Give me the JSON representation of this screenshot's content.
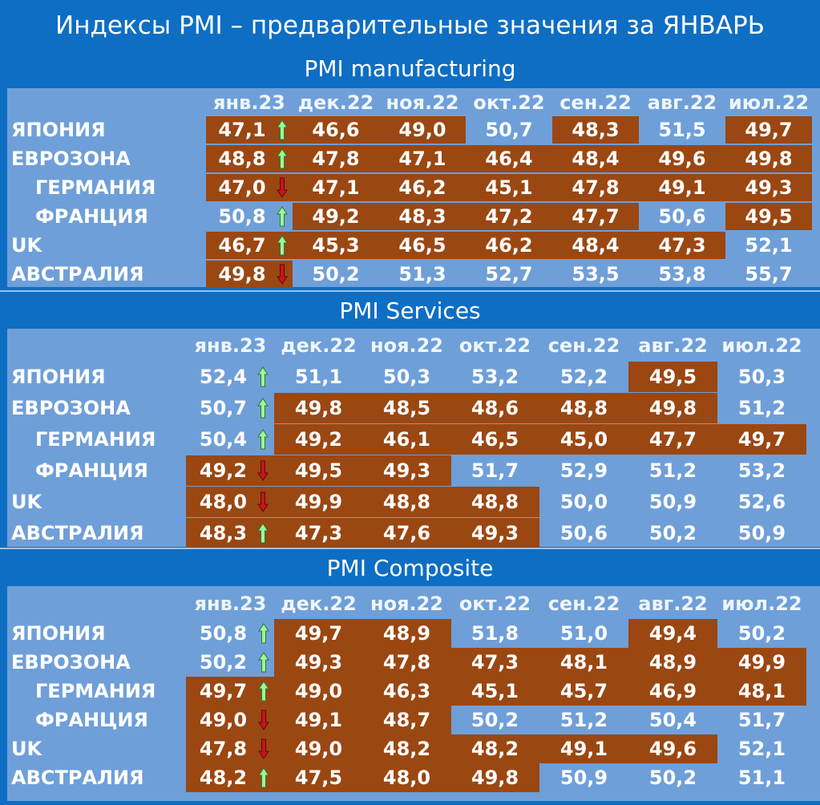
{
  "title": "Индексы PMI – предварительные значения за ЯНВАРЬ",
  "chart_data": {
    "type": "table",
    "columns": [
      "янв.23",
      "дек.22",
      "ноя.22",
      "окт.22",
      "сен.22",
      "авг.22",
      "июл.22"
    ],
    "countries": [
      "ЯПОНИЯ",
      "ЕВРОЗОНА",
      "ГЕРМАНИЯ",
      "ФРАНЦИЯ",
      "UK",
      "АВСТРАЛИЯ"
    ],
    "colors": {
      "brown": "#9b4712",
      "blue": "#6f9fd8",
      "up_arrow": "#9ef59a",
      "down_arrow": "#c8141c"
    },
    "sections": [
      {
        "title": "PMI manufacturing",
        "values": [
          [
            "47,1",
            "46,6",
            "49,0",
            "50,7",
            "48,3",
            "51,5",
            "49,7"
          ],
          [
            "48,8",
            "47,8",
            "47,1",
            "46,4",
            "48,4",
            "49,6",
            "49,8"
          ],
          [
            "47,0",
            "47,1",
            "46,2",
            "45,1",
            "47,8",
            "49,1",
            "49,3"
          ],
          [
            "50,8",
            "49,2",
            "48,3",
            "47,2",
            "47,7",
            "50,6",
            "49,5"
          ],
          [
            "46,7",
            "45,3",
            "46,5",
            "46,2",
            "48,4",
            "47,3",
            "52,1"
          ],
          [
            "49,8",
            "50,2",
            "51,3",
            "52,7",
            "53,5",
            "53,8",
            "55,7"
          ]
        ],
        "below50": [
          [
            1,
            1,
            1,
            0,
            1,
            0,
            1
          ],
          [
            1,
            1,
            1,
            1,
            1,
            1,
            1
          ],
          [
            1,
            1,
            1,
            1,
            1,
            1,
            1
          ],
          [
            0,
            1,
            1,
            1,
            1,
            0,
            1
          ],
          [
            1,
            1,
            1,
            1,
            1,
            1,
            0
          ],
          [
            1,
            0,
            0,
            0,
            0,
            0,
            0
          ]
        ],
        "trend": [
          "up",
          "up",
          "down",
          "up",
          "up",
          "down"
        ]
      },
      {
        "title": "PMI Services",
        "values": [
          [
            "52,4",
            "51,1",
            "50,3",
            "53,2",
            "52,2",
            "49,5",
            "50,3"
          ],
          [
            "50,7",
            "49,8",
            "48,5",
            "48,6",
            "48,8",
            "49,8",
            "51,2"
          ],
          [
            "50,4",
            "49,2",
            "46,1",
            "46,5",
            "45,0",
            "47,7",
            "49,7"
          ],
          [
            "49,2",
            "49,5",
            "49,3",
            "51,7",
            "52,9",
            "51,2",
            "53,2"
          ],
          [
            "48,0",
            "49,9",
            "48,8",
            "48,8",
            "50,0",
            "50,9",
            "52,6"
          ],
          [
            "48,3",
            "47,3",
            "47,6",
            "49,3",
            "50,6",
            "50,2",
            "50,9"
          ]
        ],
        "below50": [
          [
            0,
            0,
            0,
            0,
            0,
            1,
            0
          ],
          [
            0,
            1,
            1,
            1,
            1,
            1,
            0
          ],
          [
            0,
            1,
            1,
            1,
            1,
            1,
            1
          ],
          [
            1,
            1,
            1,
            0,
            0,
            0,
            0
          ],
          [
            1,
            1,
            1,
            1,
            0,
            0,
            0
          ],
          [
            1,
            1,
            1,
            1,
            0,
            0,
            0
          ]
        ],
        "trend": [
          "up",
          "up",
          "up",
          "down",
          "down",
          "up"
        ]
      },
      {
        "title": "PMI Composite",
        "values": [
          [
            "50,8",
            "49,7",
            "48,9",
            "51,8",
            "51,0",
            "49,4",
            "50,2"
          ],
          [
            "50,2",
            "49,3",
            "47,8",
            "47,3",
            "48,1",
            "48,9",
            "49,9"
          ],
          [
            "49,7",
            "49,0",
            "46,3",
            "45,1",
            "45,7",
            "46,9",
            "48,1"
          ],
          [
            "49,0",
            "49,1",
            "48,7",
            "50,2",
            "51,2",
            "50,4",
            "51,7"
          ],
          [
            "47,8",
            "49,0",
            "48,2",
            "48,2",
            "49,1",
            "49,6",
            "52,1"
          ],
          [
            "48,2",
            "47,5",
            "48,0",
            "49,8",
            "50,9",
            "50,2",
            "51,1"
          ]
        ],
        "below50": [
          [
            0,
            1,
            1,
            0,
            0,
            1,
            0
          ],
          [
            0,
            1,
            1,
            1,
            1,
            1,
            1
          ],
          [
            1,
            1,
            1,
            1,
            1,
            1,
            1
          ],
          [
            1,
            1,
            1,
            0,
            0,
            0,
            0
          ],
          [
            1,
            1,
            1,
            1,
            1,
            1,
            0
          ],
          [
            1,
            1,
            1,
            1,
            0,
            0,
            0
          ]
        ],
        "trend": [
          "up",
          "up",
          "up",
          "down",
          "down",
          "up"
        ]
      }
    ]
  }
}
